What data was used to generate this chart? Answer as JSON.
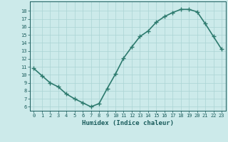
{
  "x": [
    0,
    1,
    2,
    3,
    4,
    5,
    6,
    7,
    8,
    9,
    10,
    11,
    12,
    13,
    14,
    15,
    16,
    17,
    18,
    19,
    20,
    21,
    22,
    23
  ],
  "y": [
    10.8,
    9.9,
    9.0,
    8.5,
    7.6,
    7.0,
    6.5,
    6.0,
    6.4,
    8.3,
    10.1,
    12.1,
    13.5,
    14.8,
    15.5,
    16.6,
    17.3,
    17.8,
    18.2,
    18.2,
    17.9,
    16.4,
    14.8,
    13.2
  ],
  "xlabel": "Humidex (Indice chaleur)",
  "xlim": [
    -0.5,
    23.5
  ],
  "ylim": [
    5.5,
    19.2
  ],
  "yticks": [
    6,
    7,
    8,
    9,
    10,
    11,
    12,
    13,
    14,
    15,
    16,
    17,
    18
  ],
  "xticks": [
    0,
    1,
    2,
    3,
    4,
    5,
    6,
    7,
    8,
    9,
    10,
    11,
    12,
    13,
    14,
    15,
    16,
    17,
    18,
    19,
    20,
    21,
    22,
    23
  ],
  "line_color": "#2d7a6e",
  "marker_color": "#2d7a6e",
  "bg_color": "#cceaea",
  "grid_color": "#aad4d4",
  "tick_label_color": "#1a5c5c",
  "xlabel_color": "#1a5c5c",
  "line_width": 1.2,
  "marker_size": 4
}
